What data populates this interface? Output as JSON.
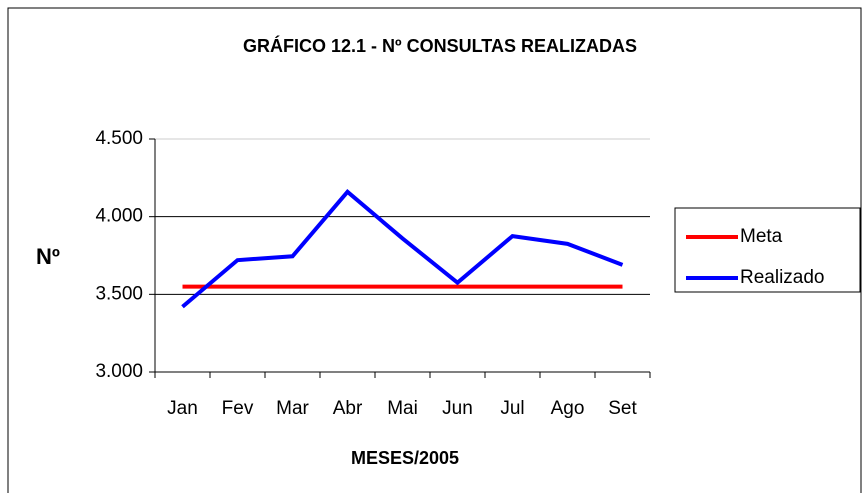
{
  "chart_data": {
    "type": "line",
    "title": "GRÁFICO 12.1 - Nº CONSULTAS REALIZADAS",
    "y_label": "Nº",
    "x_label": "MESES/2005",
    "categories": [
      "Jan",
      "Fev",
      "Mar",
      "Abr",
      "Mai",
      "Jun",
      "Jul",
      "Ago",
      "Set"
    ],
    "series": [
      {
        "name": "Meta",
        "color": "#ff0000",
        "values": [
          3550,
          3550,
          3550,
          3550,
          3550,
          3550,
          3550,
          3550,
          3550
        ]
      },
      {
        "name": "Realizado",
        "color": "#0000ff",
        "values": [
          3420,
          3720,
          3745,
          4160,
          3860,
          3575,
          3875,
          3825,
          3690
        ]
      }
    ],
    "ylim": [
      3000,
      4500
    ],
    "yticks": [
      {
        "value": 3000,
        "label": "3.000"
      },
      {
        "value": 3500,
        "label": "3.500"
      },
      {
        "value": 4000,
        "label": "4.000"
      },
      {
        "value": 4500,
        "label": "4.500"
      }
    ],
    "grid": true,
    "legend": "right"
  }
}
